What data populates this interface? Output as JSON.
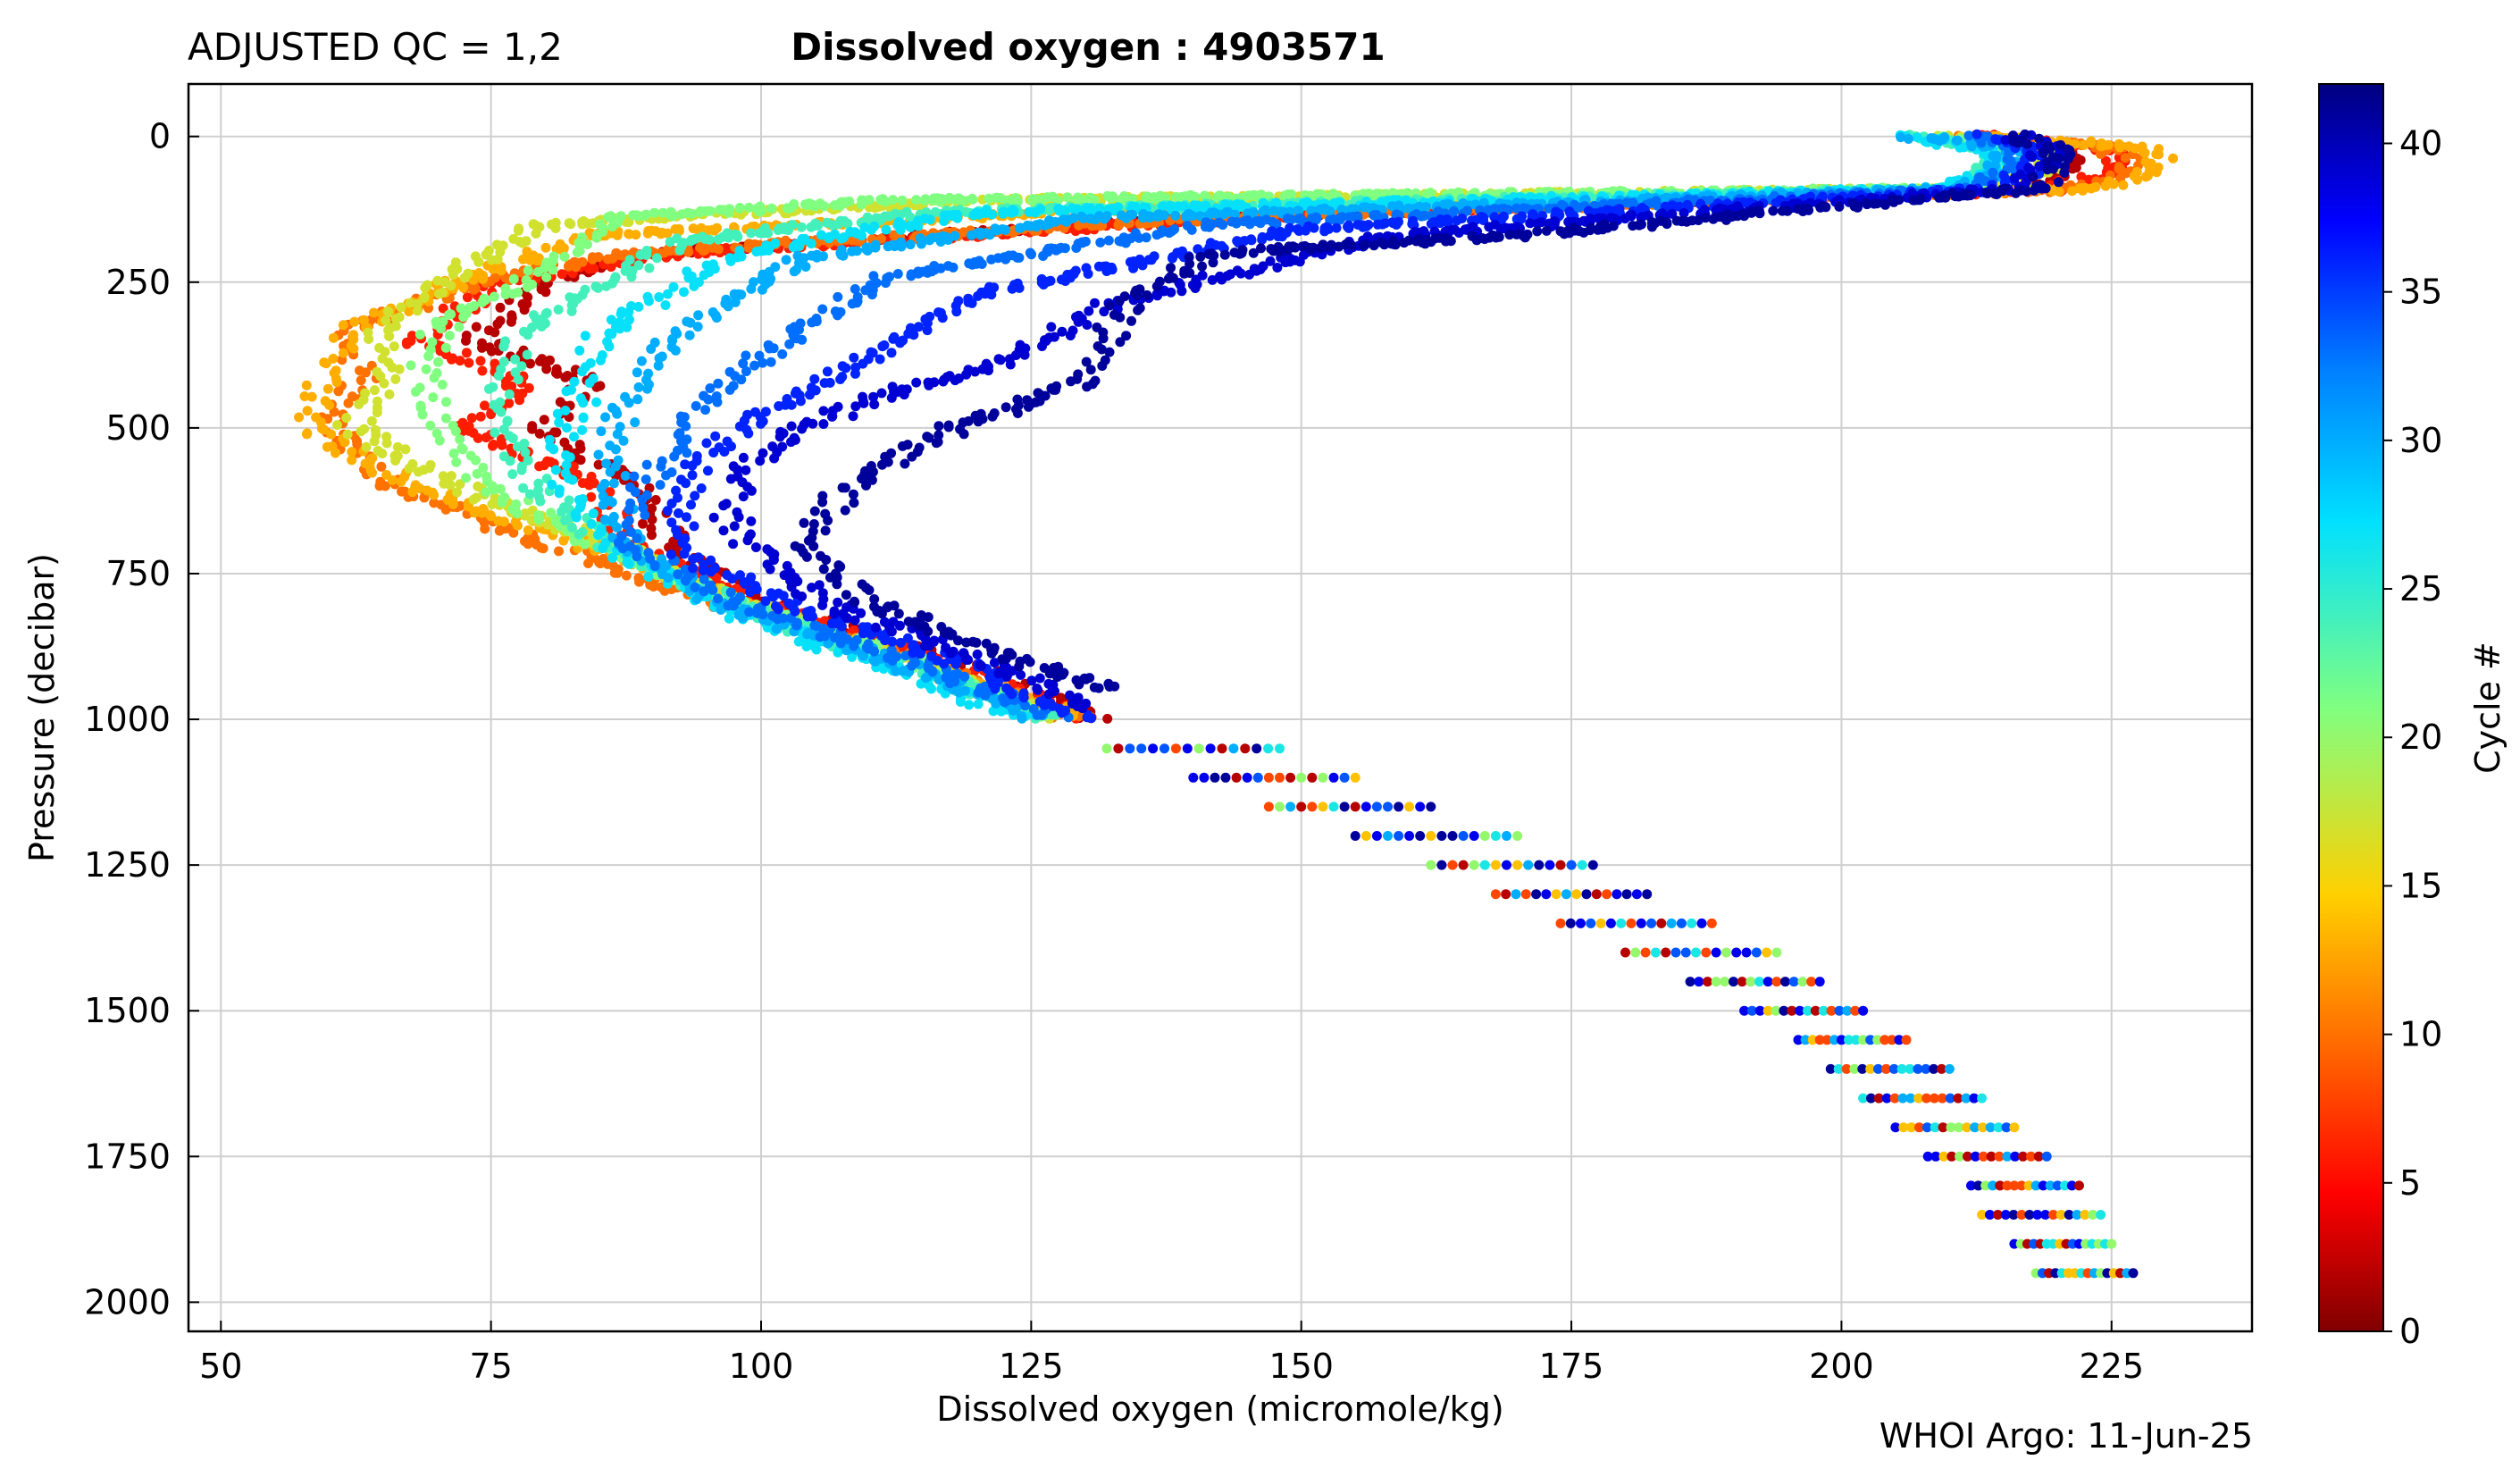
{
  "header": {
    "qc_label": "ADJUSTED QC = 1,2",
    "title": "Dissolved oxygen : 4903571"
  },
  "footer": {
    "credit": "WHOI Argo: 11-Jun-25"
  },
  "colors": {
    "axis": "#000000",
    "grid": "#cfcfcf",
    "colormap": "jet",
    "colormap_stops": [
      "#800000",
      "#ff0000",
      "#ff8000",
      "#ffff00",
      "#80ff80",
      "#00ffff",
      "#0080ff",
      "#0000ff",
      "#000080"
    ]
  },
  "chart_data": {
    "type": "scatter",
    "title": "Dissolved oxygen : 4903571",
    "xlabel": "Dissolved oxygen  (micromole/kg)",
    "ylabel": "Pressure  (decibar)",
    "xlim": [
      47,
      238
    ],
    "ylim": [
      2050,
      -90
    ],
    "y_inverted": true,
    "xticks": [
      50,
      75,
      100,
      125,
      150,
      175,
      200,
      225
    ],
    "yticks": [
      0,
      250,
      500,
      750,
      1000,
      1250,
      1500,
      1750,
      2000
    ],
    "grid": true,
    "colorbar": {
      "label": "Cycle #",
      "range": [
        0,
        42
      ],
      "ticks": [
        0,
        5,
        10,
        15,
        20,
        25,
        30,
        35,
        40
      ],
      "colormap": "jet"
    },
    "profile_bands": [
      {
        "cycle": 2,
        "points": [
          [
            212,
            0
          ],
          [
            220,
            20
          ],
          [
            222,
            50
          ],
          [
            217,
            90
          ],
          [
            140,
            140
          ],
          [
            90,
            200
          ],
          [
            80,
            250
          ],
          [
            74,
            350
          ],
          [
            84,
            420
          ],
          [
            80,
            500
          ],
          [
            88,
            600
          ],
          [
            92,
            700
          ],
          [
            100,
            800
          ],
          [
            118,
            900
          ],
          [
            131,
            1000
          ]
        ]
      },
      {
        "cycle": 6,
        "points": [
          [
            214,
            0
          ],
          [
            224,
            20
          ],
          [
            226,
            50
          ],
          [
            220,
            90
          ],
          [
            145,
            140
          ],
          [
            92,
            200
          ],
          [
            76,
            250
          ],
          [
            68,
            350
          ],
          [
            78,
            420
          ],
          [
            73,
            500
          ],
          [
            85,
            600
          ],
          [
            88,
            700
          ],
          [
            99,
            800
          ],
          [
            116,
            900
          ],
          [
            131,
            1000
          ]
        ]
      },
      {
        "cycle": 10,
        "points": [
          [
            212,
            0
          ],
          [
            225,
            20
          ],
          [
            227,
            50
          ],
          [
            222,
            90
          ],
          [
            142,
            140
          ],
          [
            88,
            200
          ],
          [
            74,
            250
          ],
          [
            62,
            330
          ],
          [
            63,
            420
          ],
          [
            60,
            500
          ],
          [
            66,
            600
          ],
          [
            80,
            700
          ],
          [
            96,
            800
          ],
          [
            115,
            900
          ],
          [
            129,
            1000
          ]
        ]
      },
      {
        "cycle": 13,
        "points": [
          [
            213,
            0
          ],
          [
            228,
            20
          ],
          [
            230,
            50
          ],
          [
            224,
            90
          ],
          [
            140,
            120
          ],
          [
            84,
            170
          ],
          [
            72,
            250
          ],
          [
            62,
            330
          ],
          [
            60,
            400
          ],
          [
            58,
            500
          ],
          [
            68,
            600
          ],
          [
            84,
            700
          ],
          [
            98,
            800
          ],
          [
            114,
            900
          ],
          [
            130,
            1000
          ]
        ]
      },
      {
        "cycle": 17,
        "points": [
          [
            210,
            0
          ],
          [
            218,
            20
          ],
          [
            220,
            50
          ],
          [
            214,
            90
          ],
          [
            120,
            110
          ],
          [
            80,
            150
          ],
          [
            73,
            220
          ],
          [
            64,
            330
          ],
          [
            66,
            400
          ],
          [
            62,
            500
          ],
          [
            72,
            600
          ],
          [
            86,
            700
          ],
          [
            98,
            800
          ],
          [
            114,
            900
          ],
          [
            128,
            1000
          ]
        ]
      },
      {
        "cycle": 21,
        "points": [
          [
            208,
            0
          ],
          [
            215,
            20
          ],
          [
            216,
            50
          ],
          [
            212,
            90
          ],
          [
            112,
            110
          ],
          [
            86,
            140
          ],
          [
            78,
            250
          ],
          [
            70,
            330
          ],
          [
            69,
            400
          ],
          [
            70,
            500
          ],
          [
            74,
            600
          ],
          [
            85,
            700
          ],
          [
            98,
            800
          ],
          [
            114,
            900
          ],
          [
            127,
            1000
          ]
        ]
      },
      {
        "cycle": 24,
        "points": [
          [
            206,
            0
          ],
          [
            214,
            20
          ],
          [
            214,
            50
          ],
          [
            210,
            90
          ],
          [
            116,
            130
          ],
          [
            92,
            180
          ],
          [
            86,
            250
          ],
          [
            78,
            330
          ],
          [
            76,
            420
          ],
          [
            76,
            500
          ],
          [
            79,
            600
          ],
          [
            86,
            700
          ],
          [
            97,
            800
          ],
          [
            112,
            900
          ],
          [
            127,
            1000
          ]
        ]
      },
      {
        "cycle": 27,
        "points": [
          [
            206,
            0
          ],
          [
            214,
            20
          ],
          [
            215,
            50
          ],
          [
            210,
            90
          ],
          [
            120,
            130
          ],
          [
            98,
            200
          ],
          [
            92,
            260
          ],
          [
            85,
            350
          ],
          [
            84,
            420
          ],
          [
            82,
            500
          ],
          [
            82,
            600
          ],
          [
            86,
            700
          ],
          [
            95,
            800
          ],
          [
            110,
            900
          ],
          [
            125,
            1000
          ]
        ]
      },
      {
        "cycle": 30,
        "points": [
          [
            207,
            0
          ],
          [
            215,
            20
          ],
          [
            215,
            50
          ],
          [
            211,
            90
          ],
          [
            130,
            140
          ],
          [
            104,
            210
          ],
          [
            96,
            290
          ],
          [
            90,
            380
          ],
          [
            88,
            450
          ],
          [
            86,
            520
          ],
          [
            86,
            600
          ],
          [
            88,
            700
          ],
          [
            96,
            800
          ],
          [
            112,
            900
          ],
          [
            126,
            1000
          ]
        ]
      },
      {
        "cycle": 33,
        "points": [
          [
            212,
            0
          ],
          [
            216,
            20
          ],
          [
            216,
            50
          ],
          [
            212,
            90
          ],
          [
            142,
            150
          ],
          [
            112,
            240
          ],
          [
            104,
            330
          ],
          [
            98,
            400
          ],
          [
            94,
            470
          ],
          [
            92,
            540
          ],
          [
            88,
            620
          ],
          [
            88,
            700
          ],
          [
            98,
            800
          ],
          [
            114,
            900
          ],
          [
            128,
            1000
          ]
        ]
      },
      {
        "cycle": 36,
        "points": [
          [
            214,
            0
          ],
          [
            218,
            20
          ],
          [
            218,
            50
          ],
          [
            214,
            90
          ],
          [
            150,
            160
          ],
          [
            120,
            270
          ],
          [
            112,
            360
          ],
          [
            104,
            440
          ],
          [
            98,
            500
          ],
          [
            94,
            560
          ],
          [
            92,
            640
          ],
          [
            93,
            720
          ],
          [
            102,
            800
          ],
          [
            118,
            900
          ],
          [
            130,
            1000
          ]
        ]
      },
      {
        "cycle": 39,
        "points": [
          [
            216,
            0
          ],
          [
            219,
            20
          ],
          [
            219,
            50
          ],
          [
            216,
            90
          ],
          [
            158,
            170
          ],
          [
            132,
            290
          ],
          [
            122,
            390
          ],
          [
            110,
            450
          ],
          [
            102,
            520
          ],
          [
            98,
            580
          ],
          [
            97,
            650
          ],
          [
            100,
            720
          ],
          [
            106,
            800
          ],
          [
            120,
            900
          ],
          [
            131,
            980
          ]
        ]
      },
      {
        "cycle": 41,
        "points": [
          [
            216,
            0
          ],
          [
            220,
            20
          ],
          [
            220,
            50
          ],
          [
            218,
            90
          ],
          [
            170,
            170
          ],
          [
            142,
            200
          ],
          [
            134,
            280
          ],
          [
            130,
            420
          ],
          [
            118,
            500
          ],
          [
            108,
            600
          ],
          [
            104,
            700
          ],
          [
            110,
            800
          ],
          [
            124,
            900
          ],
          [
            133,
            950
          ]
        ]
      }
    ],
    "deep_rows": [
      {
        "pressure": 1050,
        "x_range": [
          132,
          148
        ]
      },
      {
        "pressure": 1100,
        "x_range": [
          140,
          155
        ]
      },
      {
        "pressure": 1150,
        "x_range": [
          147,
          162
        ]
      },
      {
        "pressure": 1200,
        "x_range": [
          155,
          170
        ]
      },
      {
        "pressure": 1250,
        "x_range": [
          162,
          177
        ]
      },
      {
        "pressure": 1300,
        "x_range": [
          168,
          182
        ]
      },
      {
        "pressure": 1350,
        "x_range": [
          174,
          188
        ]
      },
      {
        "pressure": 1400,
        "x_range": [
          180,
          194
        ]
      },
      {
        "pressure": 1450,
        "x_range": [
          186,
          198
        ]
      },
      {
        "pressure": 1500,
        "x_range": [
          191,
          202
        ]
      },
      {
        "pressure": 1550,
        "x_range": [
          196,
          206
        ]
      },
      {
        "pressure": 1600,
        "x_range": [
          199,
          210
        ]
      },
      {
        "pressure": 1650,
        "x_range": [
          202,
          213
        ]
      },
      {
        "pressure": 1700,
        "x_range": [
          205,
          216
        ]
      },
      {
        "pressure": 1750,
        "x_range": [
          208,
          219
        ]
      },
      {
        "pressure": 1800,
        "x_range": [
          212,
          222
        ]
      },
      {
        "pressure": 1850,
        "x_range": [
          213,
          224
        ]
      },
      {
        "pressure": 1900,
        "x_range": [
          216,
          225
        ]
      },
      {
        "pressure": 1950,
        "x_range": [
          218,
          227
        ]
      }
    ]
  }
}
